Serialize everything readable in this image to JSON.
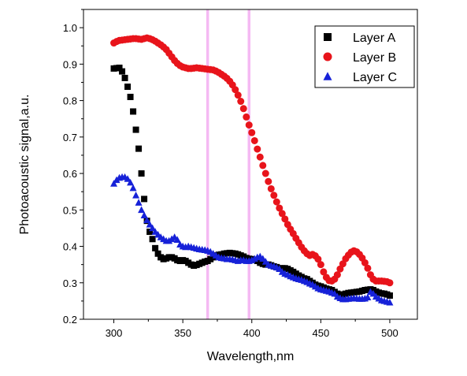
{
  "chart_data": {
    "type": "scatter",
    "xlabel": "Wavelength,nm",
    "ylabel": "Photoacoustic signal,a.u.",
    "xlim": [
      278,
      520
    ],
    "ylim": [
      0.2,
      1.05
    ],
    "xticks": [
      300,
      350,
      400,
      450,
      500
    ],
    "yticks": [
      0.2,
      0.3,
      0.4,
      0.5,
      0.6,
      0.7,
      0.8,
      0.9,
      1.0
    ],
    "ytick_labels": [
      "0.2",
      "0.3",
      "0.4",
      "0.5",
      "0.6",
      "0.7",
      "0.8",
      "0.9",
      "1.0"
    ],
    "legend_position": "top-right",
    "highlight_bands": [
      {
        "x_center": 368,
        "width": 2,
        "color": "#f3a8f0"
      },
      {
        "x_center": 398,
        "width": 2,
        "color": "#f3a8f0"
      }
    ],
    "series": [
      {
        "name": "Layer A",
        "marker": "square",
        "color": "#000000",
        "points": [
          [
            300,
            0.888
          ],
          [
            302,
            0.889
          ],
          [
            304,
            0.89
          ],
          [
            306,
            0.88
          ],
          [
            308,
            0.862
          ],
          [
            310,
            0.838
          ],
          [
            312,
            0.81
          ],
          [
            314,
            0.77
          ],
          [
            316,
            0.72
          ],
          [
            318,
            0.668
          ],
          [
            320,
            0.6
          ],
          [
            322,
            0.53
          ],
          [
            324,
            0.47
          ],
          [
            326,
            0.44
          ],
          [
            328,
            0.42
          ],
          [
            330,
            0.395
          ],
          [
            332,
            0.38
          ],
          [
            334,
            0.37
          ],
          [
            336,
            0.365
          ],
          [
            338,
            0.367
          ],
          [
            340,
            0.37
          ],
          [
            342,
            0.37
          ],
          [
            344,
            0.367
          ],
          [
            346,
            0.362
          ],
          [
            348,
            0.36
          ],
          [
            350,
            0.362
          ],
          [
            352,
            0.36
          ],
          [
            354,
            0.355
          ],
          [
            356,
            0.35
          ],
          [
            358,
            0.347
          ],
          [
            360,
            0.349
          ],
          [
            362,
            0.352
          ],
          [
            364,
            0.355
          ],
          [
            366,
            0.358
          ],
          [
            368,
            0.36
          ],
          [
            370,
            0.365
          ],
          [
            372,
            0.37
          ],
          [
            374,
            0.375
          ],
          [
            376,
            0.377
          ],
          [
            378,
            0.378
          ],
          [
            380,
            0.38
          ],
          [
            382,
            0.381
          ],
          [
            384,
            0.382
          ],
          [
            386,
            0.381
          ],
          [
            388,
            0.38
          ],
          [
            390,
            0.378
          ],
          [
            392,
            0.375
          ],
          [
            394,
            0.372
          ],
          [
            396,
            0.368
          ],
          [
            398,
            0.366
          ],
          [
            400,
            0.365
          ],
          [
            402,
            0.363
          ],
          [
            404,
            0.36
          ],
          [
            406,
            0.355
          ],
          [
            408,
            0.352
          ],
          [
            410,
            0.35
          ],
          [
            412,
            0.35
          ],
          [
            414,
            0.348
          ],
          [
            416,
            0.345
          ],
          [
            418,
            0.343
          ],
          [
            420,
            0.34
          ],
          [
            422,
            0.34
          ],
          [
            424,
            0.34
          ],
          [
            426,
            0.338
          ],
          [
            428,
            0.334
          ],
          [
            430,
            0.33
          ],
          [
            432,
            0.325
          ],
          [
            434,
            0.32
          ],
          [
            436,
            0.316
          ],
          [
            438,
            0.312
          ],
          [
            440,
            0.31
          ],
          [
            442,
            0.305
          ],
          [
            444,
            0.3
          ],
          [
            446,
            0.295
          ],
          [
            448,
            0.292
          ],
          [
            450,
            0.29
          ],
          [
            452,
            0.287
          ],
          [
            454,
            0.284
          ],
          [
            456,
            0.282
          ],
          [
            458,
            0.28
          ],
          [
            460,
            0.275
          ],
          [
            462,
            0.27
          ],
          [
            464,
            0.268
          ],
          [
            466,
            0.268
          ],
          [
            468,
            0.27
          ],
          [
            470,
            0.272
          ],
          [
            472,
            0.273
          ],
          [
            474,
            0.274
          ],
          [
            476,
            0.275
          ],
          [
            478,
            0.276
          ],
          [
            480,
            0.278
          ],
          [
            482,
            0.28
          ],
          [
            484,
            0.281
          ],
          [
            486,
            0.282
          ],
          [
            488,
            0.28
          ],
          [
            490,
            0.276
          ],
          [
            492,
            0.273
          ],
          [
            494,
            0.271
          ],
          [
            496,
            0.27
          ],
          [
            498,
            0.268
          ],
          [
            500,
            0.265
          ]
        ]
      },
      {
        "name": "Layer B",
        "marker": "circle",
        "color": "#e8141b",
        "points": [
          [
            300,
            0.958
          ],
          [
            302,
            0.962
          ],
          [
            304,
            0.965
          ],
          [
            306,
            0.966
          ],
          [
            308,
            0.967
          ],
          [
            310,
            0.968
          ],
          [
            312,
            0.969
          ],
          [
            314,
            0.97
          ],
          [
            316,
            0.97
          ],
          [
            318,
            0.969
          ],
          [
            320,
            0.968
          ],
          [
            322,
            0.97
          ],
          [
            324,
            0.972
          ],
          [
            326,
            0.97
          ],
          [
            328,
            0.967
          ],
          [
            330,
            0.963
          ],
          [
            332,
            0.958
          ],
          [
            334,
            0.953
          ],
          [
            336,
            0.947
          ],
          [
            338,
            0.94
          ],
          [
            340,
            0.93
          ],
          [
            342,
            0.92
          ],
          [
            344,
            0.91
          ],
          [
            346,
            0.902
          ],
          [
            348,
            0.896
          ],
          [
            350,
            0.892
          ],
          [
            352,
            0.89
          ],
          [
            354,
            0.888
          ],
          [
            356,
            0.888
          ],
          [
            358,
            0.889
          ],
          [
            360,
            0.89
          ],
          [
            362,
            0.889
          ],
          [
            364,
            0.888
          ],
          [
            366,
            0.887
          ],
          [
            368,
            0.886
          ],
          [
            370,
            0.885
          ],
          [
            372,
            0.884
          ],
          [
            374,
            0.881
          ],
          [
            376,
            0.877
          ],
          [
            378,
            0.872
          ],
          [
            380,
            0.867
          ],
          [
            382,
            0.861
          ],
          [
            384,
            0.853
          ],
          [
            386,
            0.843
          ],
          [
            388,
            0.83
          ],
          [
            390,
            0.815
          ],
          [
            392,
            0.798
          ],
          [
            394,
            0.778
          ],
          [
            396,
            0.755
          ],
          [
            398,
            0.733
          ],
          [
            400,
            0.712
          ],
          [
            402,
            0.69
          ],
          [
            404,
            0.667
          ],
          [
            406,
            0.645
          ],
          [
            408,
            0.622
          ],
          [
            410,
            0.6
          ],
          [
            412,
            0.578
          ],
          [
            414,
            0.558
          ],
          [
            416,
            0.54
          ],
          [
            418,
            0.522
          ],
          [
            420,
            0.505
          ],
          [
            422,
            0.49
          ],
          [
            424,
            0.475
          ],
          [
            426,
            0.46
          ],
          [
            428,
            0.447
          ],
          [
            430,
            0.435
          ],
          [
            432,
            0.422
          ],
          [
            434,
            0.41
          ],
          [
            436,
            0.398
          ],
          [
            438,
            0.388
          ],
          [
            440,
            0.38
          ],
          [
            442,
            0.375
          ],
          [
            444,
            0.378
          ],
          [
            446,
            0.374
          ],
          [
            448,
            0.365
          ],
          [
            450,
            0.35
          ],
          [
            452,
            0.33
          ],
          [
            454,
            0.315
          ],
          [
            456,
            0.306
          ],
          [
            458,
            0.305
          ],
          [
            460,
            0.31
          ],
          [
            462,
            0.322
          ],
          [
            464,
            0.338
          ],
          [
            466,
            0.352
          ],
          [
            468,
            0.366
          ],
          [
            470,
            0.376
          ],
          [
            472,
            0.384
          ],
          [
            474,
            0.388
          ],
          [
            476,
            0.385
          ],
          [
            478,
            0.378
          ],
          [
            480,
            0.368
          ],
          [
            482,
            0.355
          ],
          [
            484,
            0.34
          ],
          [
            486,
            0.322
          ],
          [
            488,
            0.31
          ],
          [
            490,
            0.305
          ],
          [
            492,
            0.305
          ],
          [
            494,
            0.305
          ],
          [
            496,
            0.304
          ],
          [
            498,
            0.303
          ],
          [
            500,
            0.3
          ]
        ]
      },
      {
        "name": "Layer C",
        "marker": "triangle",
        "color": "#1621d8",
        "points": [
          [
            300,
            0.572
          ],
          [
            302,
            0.582
          ],
          [
            304,
            0.588
          ],
          [
            306,
            0.59
          ],
          [
            308,
            0.59
          ],
          [
            310,
            0.585
          ],
          [
            312,
            0.575
          ],
          [
            314,
            0.56
          ],
          [
            316,
            0.54
          ],
          [
            318,
            0.52
          ],
          [
            320,
            0.5
          ],
          [
            322,
            0.485
          ],
          [
            324,
            0.472
          ],
          [
            326,
            0.46
          ],
          [
            328,
            0.45
          ],
          [
            330,
            0.44
          ],
          [
            332,
            0.432
          ],
          [
            334,
            0.425
          ],
          [
            336,
            0.42
          ],
          [
            338,
            0.415
          ],
          [
            340,
            0.415
          ],
          [
            342,
            0.42
          ],
          [
            344,
            0.425
          ],
          [
            346,
            0.418
          ],
          [
            348,
            0.405
          ],
          [
            350,
            0.4
          ],
          [
            352,
            0.398
          ],
          [
            354,
            0.4
          ],
          [
            356,
            0.398
          ],
          [
            358,
            0.396
          ],
          [
            360,
            0.394
          ],
          [
            362,
            0.392
          ],
          [
            364,
            0.391
          ],
          [
            366,
            0.39
          ],
          [
            368,
            0.388
          ],
          [
            370,
            0.385
          ],
          [
            372,
            0.38
          ],
          [
            374,
            0.375
          ],
          [
            376,
            0.37
          ],
          [
            378,
            0.368
          ],
          [
            380,
            0.367
          ],
          [
            382,
            0.365
          ],
          [
            384,
            0.365
          ],
          [
            386,
            0.364
          ],
          [
            388,
            0.362
          ],
          [
            390,
            0.36
          ],
          [
            392,
            0.362
          ],
          [
            394,
            0.362
          ],
          [
            396,
            0.36
          ],
          [
            398,
            0.36
          ],
          [
            400,
            0.362
          ],
          [
            402,
            0.366
          ],
          [
            404,
            0.37
          ],
          [
            406,
            0.372
          ],
          [
            408,
            0.366
          ],
          [
            410,
            0.358
          ],
          [
            412,
            0.35
          ],
          [
            414,
            0.347
          ],
          [
            416,
            0.345
          ],
          [
            418,
            0.342
          ],
          [
            420,
            0.338
          ],
          [
            422,
            0.33
          ],
          [
            424,
            0.325
          ],
          [
            426,
            0.322
          ],
          [
            428,
            0.318
          ],
          [
            430,
            0.315
          ],
          [
            432,
            0.312
          ],
          [
            434,
            0.31
          ],
          [
            436,
            0.308
          ],
          [
            438,
            0.305
          ],
          [
            440,
            0.302
          ],
          [
            442,
            0.298
          ],
          [
            444,
            0.295
          ],
          [
            446,
            0.29
          ],
          [
            448,
            0.285
          ],
          [
            450,
            0.282
          ],
          [
            452,
            0.28
          ],
          [
            454,
            0.278
          ],
          [
            456,
            0.276
          ],
          [
            458,
            0.273
          ],
          [
            460,
            0.27
          ],
          [
            462,
            0.262
          ],
          [
            464,
            0.258
          ],
          [
            466,
            0.255
          ],
          [
            468,
            0.255
          ],
          [
            470,
            0.256
          ],
          [
            472,
            0.257
          ],
          [
            474,
            0.258
          ],
          [
            476,
            0.257
          ],
          [
            478,
            0.256
          ],
          [
            480,
            0.256
          ],
          [
            482,
            0.257
          ],
          [
            484,
            0.26
          ],
          [
            486,
            0.275
          ],
          [
            488,
            0.27
          ],
          [
            490,
            0.262
          ],
          [
            492,
            0.257
          ],
          [
            494,
            0.252
          ],
          [
            496,
            0.25
          ],
          [
            498,
            0.248
          ],
          [
            500,
            0.246
          ]
        ]
      }
    ]
  }
}
